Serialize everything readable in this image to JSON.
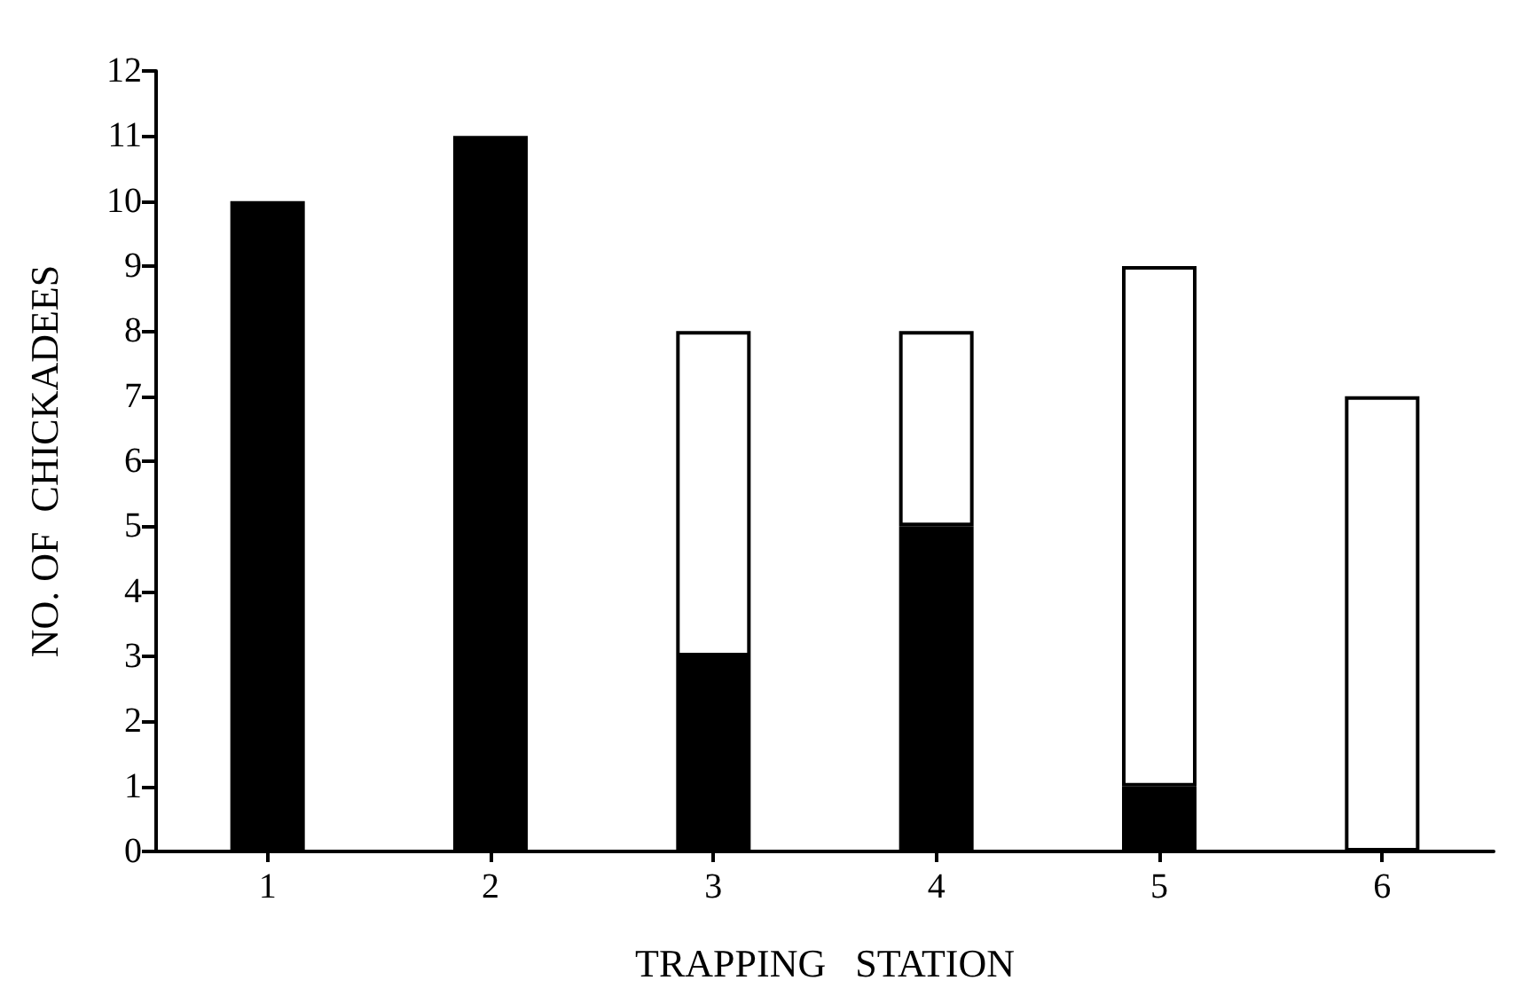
{
  "chart_data": {
    "type": "bar",
    "xlabel": "TRAPPING   STATION",
    "ylabel": "NO. OF  CHICKADEES",
    "categories": [
      "1",
      "2",
      "3",
      "4",
      "5",
      "6"
    ],
    "stacked": true,
    "series": [
      {
        "color": "#000000",
        "values": [
          10,
          11,
          3,
          5,
          1,
          0
        ]
      },
      {
        "color": "#ffffff",
        "values": [
          0,
          0,
          5,
          3,
          8,
          7
        ]
      }
    ],
    "ylim": [
      0,
      12
    ],
    "yticks": [
      0,
      1,
      2,
      3,
      4,
      5,
      6,
      7,
      8,
      9,
      10,
      11,
      12
    ],
    "grid": false
  }
}
